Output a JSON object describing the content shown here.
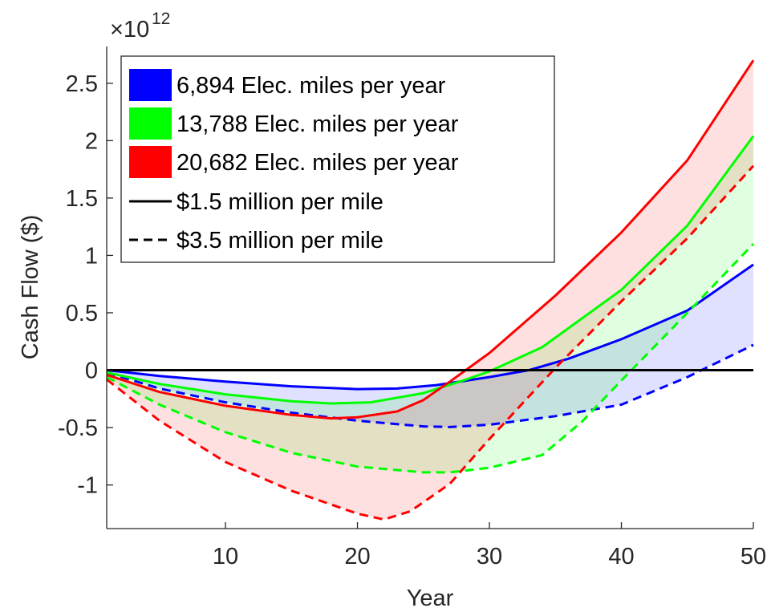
{
  "chart_data": {
    "type": "line",
    "xlabel": "Year",
    "ylabel": "Cash Flow ($)",
    "y_exponent_base": "×10",
    "y_exponent_power": "12",
    "xlim": [
      1,
      50
    ],
    "ylim": [
      -1.38,
      2.82
    ],
    "x_ticks": [
      10,
      20,
      30,
      40,
      50
    ],
    "y_ticks": [
      -1,
      -0.5,
      0,
      0.5,
      1,
      1.5,
      2,
      2.5
    ],
    "x_tick_labels": [
      "10",
      "20",
      "30",
      "40",
      "50"
    ],
    "y_tick_labels": [
      "-1",
      "-0.5",
      "0",
      "0.5",
      "1",
      "1.5",
      "2",
      "2.5"
    ],
    "legend_position": "top-left",
    "legend": [
      {
        "label": "6,894 Elec. miles per year",
        "kind": "patch",
        "color": "#0000ff"
      },
      {
        "label": "13,788 Elec. miles per year",
        "kind": "patch",
        "color": "#00ff00"
      },
      {
        "label": "20,682 Elec. miles per year",
        "kind": "patch",
        "color": "#ff0000"
      },
      {
        "label": "$1.5 million per mile",
        "kind": "solid-line",
        "color": "#000000"
      },
      {
        "label": "$3.5 million per mile",
        "kind": "dashed-line",
        "color": "#000000"
      }
    ],
    "zero_line": {
      "y": 0,
      "color": "#000000"
    },
    "series": [
      {
        "color": "#0000ff",
        "fill": "#0000ff",
        "solid": [
          [
            1,
            0
          ],
          [
            5,
            -0.05
          ],
          [
            10,
            -0.1
          ],
          [
            15,
            -0.14
          ],
          [
            20,
            -0.165
          ],
          [
            23,
            -0.16
          ],
          [
            26,
            -0.13
          ],
          [
            30,
            -0.06
          ],
          [
            33,
            0
          ],
          [
            36,
            0.1
          ],
          [
            40,
            0.27
          ],
          [
            45,
            0.52
          ],
          [
            50,
            0.92
          ]
        ],
        "dashed": [
          [
            1,
            -0.02
          ],
          [
            5,
            -0.16
          ],
          [
            10,
            -0.28
          ],
          [
            15,
            -0.37
          ],
          [
            20,
            -0.44
          ],
          [
            25,
            -0.49
          ],
          [
            27,
            -0.495
          ],
          [
            30,
            -0.475
          ],
          [
            35,
            -0.4
          ],
          [
            40,
            -0.3
          ],
          [
            45,
            -0.06
          ],
          [
            50,
            0.22
          ]
        ]
      },
      {
        "color": "#00ff00",
        "fill": "#00ff00",
        "solid": [
          [
            1,
            -0.02
          ],
          [
            5,
            -0.12
          ],
          [
            10,
            -0.21
          ],
          [
            15,
            -0.27
          ],
          [
            18,
            -0.29
          ],
          [
            21,
            -0.28
          ],
          [
            25,
            -0.2
          ],
          [
            28,
            -0.09
          ],
          [
            30,
            -0.01
          ],
          [
            34,
            0.2
          ],
          [
            40,
            0.7
          ],
          [
            45,
            1.26
          ],
          [
            50,
            2.04
          ]
        ],
        "dashed": [
          [
            1,
            -0.06
          ],
          [
            5,
            -0.3
          ],
          [
            10,
            -0.54
          ],
          [
            15,
            -0.72
          ],
          [
            20,
            -0.84
          ],
          [
            25,
            -0.89
          ],
          [
            27,
            -0.89
          ],
          [
            30,
            -0.85
          ],
          [
            34,
            -0.74
          ],
          [
            37,
            -0.45
          ],
          [
            40,
            -0.09
          ],
          [
            45,
            0.5
          ],
          [
            50,
            1.1
          ]
        ]
      },
      {
        "color": "#ff0000",
        "fill": "#ff0000",
        "solid": [
          [
            1,
            -0.04
          ],
          [
            5,
            -0.19
          ],
          [
            10,
            -0.31
          ],
          [
            15,
            -0.39
          ],
          [
            18,
            -0.42
          ],
          [
            20,
            -0.41
          ],
          [
            23,
            -0.36
          ],
          [
            25,
            -0.26
          ],
          [
            27,
            -0.1
          ],
          [
            30,
            0.15
          ],
          [
            35,
            0.65
          ],
          [
            40,
            1.2
          ],
          [
            45,
            1.83
          ],
          [
            50,
            2.7
          ]
        ],
        "dashed": [
          [
            1,
            -0.08
          ],
          [
            5,
            -0.44
          ],
          [
            10,
            -0.8
          ],
          [
            15,
            -1.05
          ],
          [
            20,
            -1.25
          ],
          [
            22,
            -1.3
          ],
          [
            24,
            -1.23
          ],
          [
            27,
            -0.99
          ],
          [
            30,
            -0.6
          ],
          [
            35,
            0.02
          ],
          [
            40,
            0.6
          ],
          [
            45,
            1.15
          ],
          [
            50,
            1.78
          ]
        ]
      }
    ]
  }
}
